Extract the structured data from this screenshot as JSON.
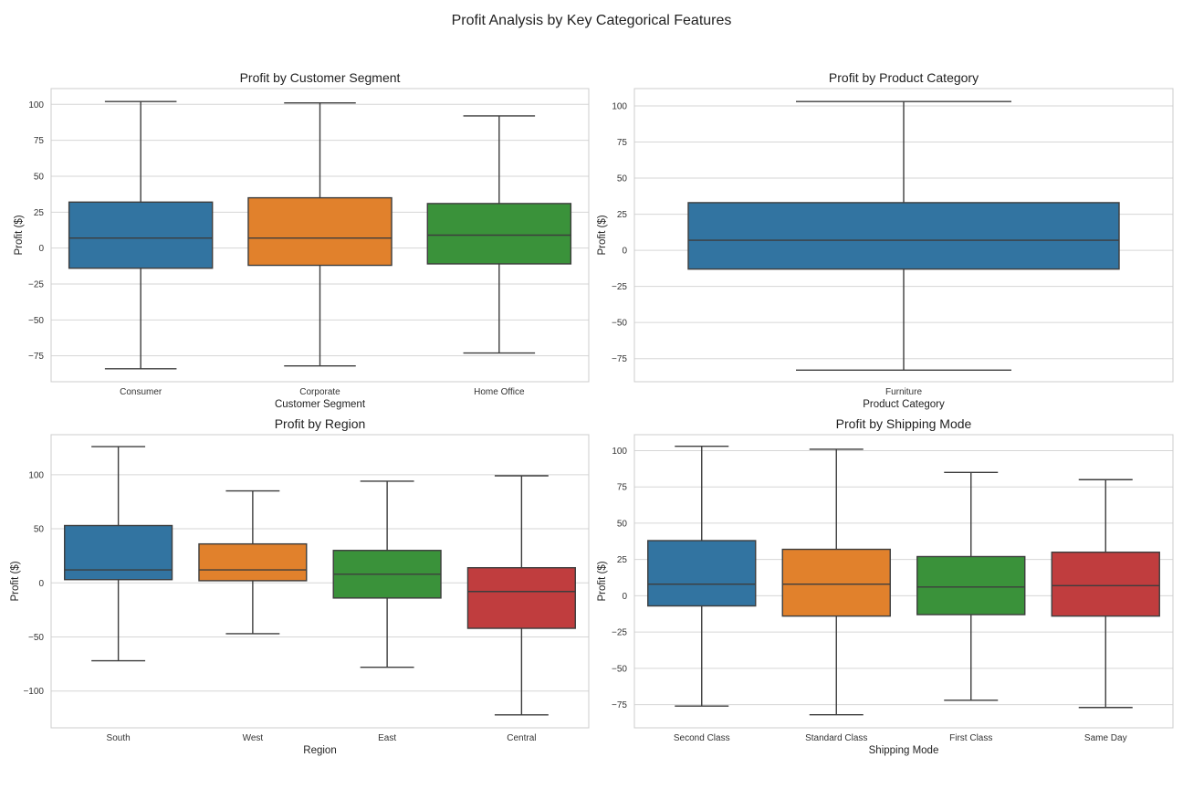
{
  "suptitle": "Profit Analysis by Key Categorical Features",
  "chart_data": [
    {
      "type": "box",
      "title": "Profit by Customer Segment",
      "xlabel": "Customer Segment",
      "ylabel": "Profit ($)",
      "ylim": [
        -93,
        111
      ],
      "yticks": [
        100,
        75,
        50,
        25,
        0,
        -25,
        -50,
        -75
      ],
      "categories": [
        "Consumer",
        "Corporate",
        "Home Office"
      ],
      "colors": [
        "#3274a1",
        "#e1812c",
        "#3a923a"
      ],
      "boxes": [
        {
          "whislo": -84,
          "q1": -14,
          "med": 7,
          "q3": 32,
          "whishi": 102
        },
        {
          "whislo": -82,
          "q1": -12,
          "med": 7,
          "q3": 35,
          "whishi": 101
        },
        {
          "whislo": -73,
          "q1": -11,
          "med": 9,
          "q3": 31,
          "whishi": 92
        }
      ]
    },
    {
      "type": "box",
      "title": "Profit by Product Category",
      "xlabel": "Product Category",
      "ylabel": "Profit ($)",
      "ylim": [
        -91,
        112
      ],
      "yticks": [
        100,
        75,
        50,
        25,
        0,
        -25,
        -50,
        -75
      ],
      "categories": [
        "Furniture"
      ],
      "colors": [
        "#3274a1"
      ],
      "boxes": [
        {
          "whislo": -83,
          "q1": -13,
          "med": 7,
          "q3": 33,
          "whishi": 103
        }
      ]
    },
    {
      "type": "box",
      "title": "Profit by Region",
      "xlabel": "Region",
      "ylabel": "Profit ($)",
      "ylim": [
        -134,
        137
      ],
      "yticks": [
        100,
        50,
        0,
        -50,
        -100
      ],
      "categories": [
        "South",
        "West",
        "East",
        "Central"
      ],
      "colors": [
        "#3274a1",
        "#e1812c",
        "#3a923a",
        "#c03d3e"
      ],
      "boxes": [
        {
          "whislo": -72,
          "q1": 3,
          "med": 12,
          "q3": 53,
          "whishi": 126
        },
        {
          "whislo": -47,
          "q1": 2,
          "med": 12,
          "q3": 36,
          "whishi": 85
        },
        {
          "whislo": -78,
          "q1": -14,
          "med": 8,
          "q3": 30,
          "whishi": 94
        },
        {
          "whislo": -122,
          "q1": -42,
          "med": -8,
          "q3": 14,
          "whishi": 99
        }
      ]
    },
    {
      "type": "box",
      "title": "Profit by Shipping Mode",
      "xlabel": "Shipping Mode",
      "ylabel": "Profit ($)",
      "ylim": [
        -91,
        111
      ],
      "yticks": [
        100,
        75,
        50,
        25,
        0,
        -25,
        -50,
        -75
      ],
      "categories": [
        "Second Class",
        "Standard Class",
        "First Class",
        "Same Day"
      ],
      "colors": [
        "#3274a1",
        "#e1812c",
        "#3a923a",
        "#c03d3e"
      ],
      "boxes": [
        {
          "whislo": -76,
          "q1": -7,
          "med": 8,
          "q3": 38,
          "whishi": 103
        },
        {
          "whislo": -82,
          "q1": -14,
          "med": 8,
          "q3": 32,
          "whishi": 101
        },
        {
          "whislo": -72,
          "q1": -13,
          "med": 6,
          "q3": 27,
          "whishi": 85
        },
        {
          "whislo": -77,
          "q1": -14,
          "med": 7,
          "q3": 30,
          "whishi": 80
        }
      ]
    }
  ]
}
